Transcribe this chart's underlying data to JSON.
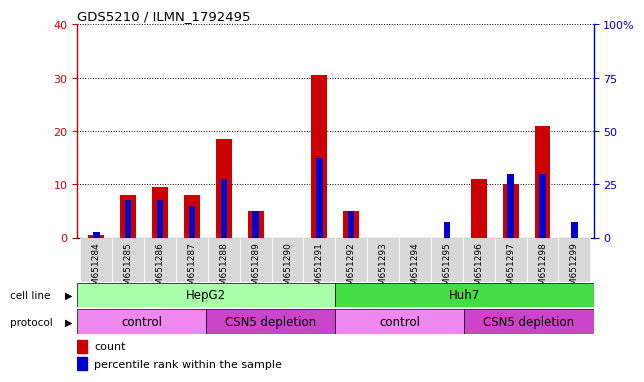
{
  "title": "GDS5210 / ILMN_1792495",
  "samples": [
    "GSM651284",
    "GSM651285",
    "GSM651286",
    "GSM651287",
    "GSM651288",
    "GSM651289",
    "GSM651290",
    "GSM651291",
    "GSM651292",
    "GSM651293",
    "GSM651294",
    "GSM651295",
    "GSM651296",
    "GSM651297",
    "GSM651298",
    "GSM651299"
  ],
  "count": [
    0.4,
    8.0,
    9.5,
    8.0,
    18.5,
    5.0,
    0,
    30.5,
    5.0,
    0,
    0,
    0,
    11.0,
    10.0,
    21.0,
    0
  ],
  "percentile": [
    2.5,
    17.5,
    17.5,
    15.0,
    27.5,
    12.5,
    0,
    37.5,
    12.5,
    0,
    0,
    7.5,
    0,
    30.0,
    30.0,
    7.5
  ],
  "left_ylim": [
    0,
    40
  ],
  "right_ylim": [
    0,
    100
  ],
  "left_yticks": [
    0,
    10,
    20,
    30,
    40
  ],
  "right_yticks": [
    0,
    25,
    50,
    75,
    100
  ],
  "right_yticklabels": [
    "0",
    "25",
    "50",
    "75",
    "100%"
  ],
  "left_yticklabels": [
    "0",
    "10",
    "20",
    "30",
    "40"
  ],
  "cell_line_groups": [
    {
      "label": "HepG2",
      "start": 0,
      "end": 8,
      "color": "#AAFFAA"
    },
    {
      "label": "Huh7",
      "start": 8,
      "end": 16,
      "color": "#44DD44"
    }
  ],
  "protocol_groups": [
    {
      "label": "control",
      "start": 0,
      "end": 4,
      "color": "#EE88EE"
    },
    {
      "label": "CSN5 depletion",
      "start": 4,
      "end": 8,
      "color": "#CC44CC"
    },
    {
      "label": "control",
      "start": 8,
      "end": 12,
      "color": "#EE88EE"
    },
    {
      "label": "CSN5 depletion",
      "start": 12,
      "end": 16,
      "color": "#CC44CC"
    }
  ],
  "count_color": "#CC0000",
  "percentile_color": "#0000CC",
  "left_tick_color": "#CC0000",
  "right_tick_color": "#0000CC",
  "legend_count_label": "count",
  "legend_percentile_label": "percentile rank within the sample",
  "xticklabel_bg": "#D8D8D8"
}
